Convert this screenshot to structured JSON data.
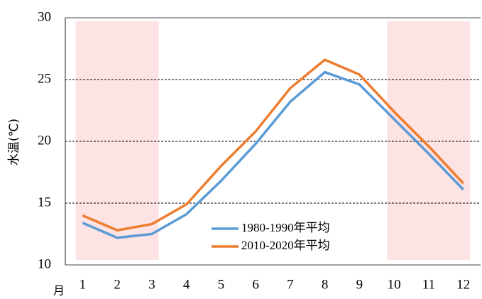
{
  "chart_data": {
    "type": "line",
    "y_label": "水温(℃)",
    "x_label": "月",
    "categories": [
      "1",
      "2",
      "3",
      "4",
      "5",
      "6",
      "7",
      "8",
      "9",
      "10",
      "11",
      "12"
    ],
    "series": [
      {
        "name": "1980-1990年平均",
        "color": "#5b9bd5",
        "values": [
          13.4,
          12.2,
          12.5,
          14.1,
          16.8,
          19.8,
          23.2,
          25.6,
          24.6,
          21.8,
          19.0,
          16.1
        ]
      },
      {
        "name": "2010-2020年平均",
        "color": "#ed7d31",
        "values": [
          14.0,
          12.8,
          13.3,
          14.9,
          18.0,
          20.8,
          24.3,
          26.6,
          25.4,
          22.4,
          19.6,
          16.6
        ]
      }
    ],
    "ylim": [
      10,
      30
    ],
    "yticks": [
      10,
      15,
      20,
      25,
      30
    ],
    "grid": true,
    "shaded_ranges": [
      [
        "1",
        "3"
      ],
      [
        "10",
        "12"
      ]
    ],
    "shade_color": "#fde3e3"
  }
}
